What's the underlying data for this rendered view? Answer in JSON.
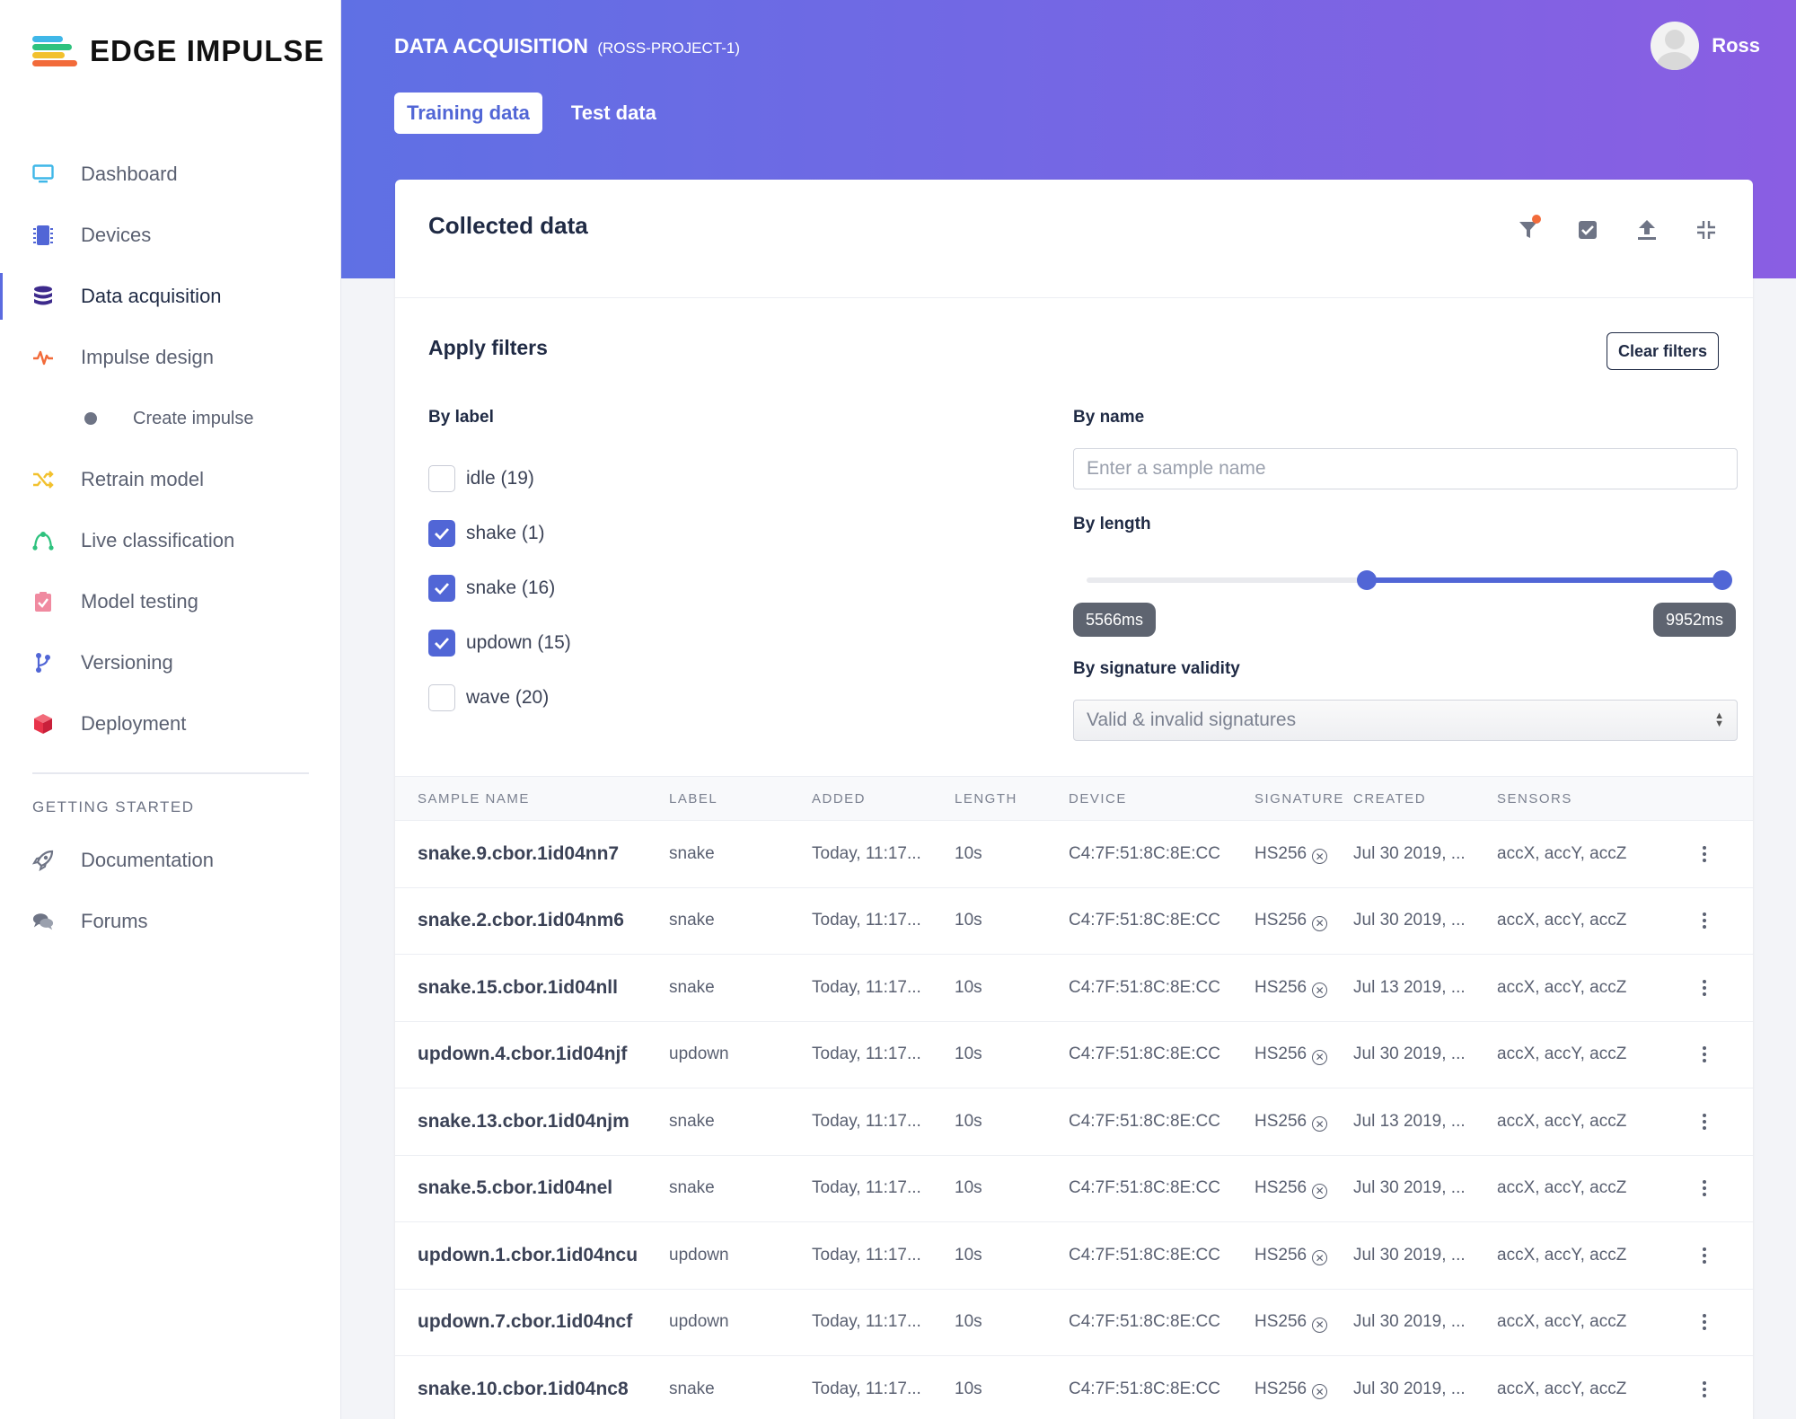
{
  "brand": {
    "name": "EDGE IMPULSE"
  },
  "sidebar": {
    "items": [
      {
        "label": "Dashboard",
        "icon": "monitor-icon",
        "color": "#3fb7e8"
      },
      {
        "label": "Devices",
        "icon": "chip-icon",
        "color": "#5166d6"
      },
      {
        "label": "Data acquisition",
        "icon": "database-icon",
        "color": "#3d2a8c",
        "active": true
      },
      {
        "label": "Impulse design",
        "icon": "pulse-icon",
        "color": "#f26b3a"
      },
      {
        "label": "Retrain model",
        "icon": "shuffle-icon",
        "color": "#f2c12e"
      },
      {
        "label": "Live classification",
        "icon": "bezier-icon",
        "color": "#2ec27e"
      },
      {
        "label": "Model testing",
        "icon": "clipboard-check-icon",
        "color": "#f08aa0"
      },
      {
        "label": "Versioning",
        "icon": "branch-icon",
        "color": "#5166d6"
      },
      {
        "label": "Deployment",
        "icon": "cube-icon",
        "color": "#e8334a"
      }
    ],
    "sub_item": {
      "label": "Create impulse"
    },
    "section_title": "GETTING STARTED",
    "help_items": [
      {
        "label": "Documentation",
        "icon": "rocket-icon"
      },
      {
        "label": "Forums",
        "icon": "chat-bubbles-icon"
      }
    ]
  },
  "header": {
    "title": "DATA ACQUISITION",
    "project": "(ROSS-PROJECT-1)",
    "user": "Ross",
    "tabs": [
      {
        "label": "Training data",
        "active": true
      },
      {
        "label": "Test data",
        "active": false
      }
    ],
    "gradient_start": "#5f70e4",
    "gradient_end": "#8a5ee3"
  },
  "card": {
    "title": "Collected data",
    "tools": [
      "filter-icon",
      "check-square-icon",
      "upload-icon",
      "collapse-icon"
    ]
  },
  "filters": {
    "title": "Apply filters",
    "clear_label": "Clear filters",
    "by_label_title": "By label",
    "labels": [
      {
        "text": "idle (19)",
        "checked": false
      },
      {
        "text": "shake (1)",
        "checked": true
      },
      {
        "text": "snake (16)",
        "checked": true
      },
      {
        "text": "updown (15)",
        "checked": true
      },
      {
        "text": "wave (20)",
        "checked": false
      }
    ],
    "by_name_title": "By name",
    "name_placeholder": "Enter a sample name",
    "by_length_title": "By length",
    "length_min_label": "5566ms",
    "length_max_label": "9952ms",
    "length_range_fraction": [
      0.44,
      1.0
    ],
    "by_signature_title": "By signature validity",
    "signature_selected": "Valid & invalid signatures"
  },
  "table": {
    "columns": [
      "SAMPLE NAME",
      "LABEL",
      "ADDED",
      "LENGTH",
      "DEVICE",
      "SIGNATURE",
      "CREATED",
      "SENSORS"
    ],
    "rows": [
      {
        "name": "snake.9.cbor.1id04nn7",
        "label": "snake",
        "added": "Today, 11:17...",
        "length": "10s",
        "device": "C4:7F:51:8C:8E:CC",
        "signature": "HS256",
        "created": "Jul 30 2019, ...",
        "sensors": "accX, accY, accZ"
      },
      {
        "name": "snake.2.cbor.1id04nm6",
        "label": "snake",
        "added": "Today, 11:17...",
        "length": "10s",
        "device": "C4:7F:51:8C:8E:CC",
        "signature": "HS256",
        "created": "Jul 30 2019, ...",
        "sensors": "accX, accY, accZ"
      },
      {
        "name": "snake.15.cbor.1id04nll",
        "label": "snake",
        "added": "Today, 11:17...",
        "length": "10s",
        "device": "C4:7F:51:8C:8E:CC",
        "signature": "HS256",
        "created": "Jul 13 2019, ...",
        "sensors": "accX, accY, accZ"
      },
      {
        "name": "updown.4.cbor.1id04njf",
        "label": "updown",
        "added": "Today, 11:17...",
        "length": "10s",
        "device": "C4:7F:51:8C:8E:CC",
        "signature": "HS256",
        "created": "Jul 30 2019, ...",
        "sensors": "accX, accY, accZ"
      },
      {
        "name": "snake.13.cbor.1id04njm",
        "label": "snake",
        "added": "Today, 11:17...",
        "length": "10s",
        "device": "C4:7F:51:8C:8E:CC",
        "signature": "HS256",
        "created": "Jul 13 2019, ...",
        "sensors": "accX, accY, accZ"
      },
      {
        "name": "snake.5.cbor.1id04nel",
        "label": "snake",
        "added": "Today, 11:17...",
        "length": "10s",
        "device": "C4:7F:51:8C:8E:CC",
        "signature": "HS256",
        "created": "Jul 30 2019, ...",
        "sensors": "accX, accY, accZ"
      },
      {
        "name": "updown.1.cbor.1id04ncu",
        "label": "updown",
        "added": "Today, 11:17...",
        "length": "10s",
        "device": "C4:7F:51:8C:8E:CC",
        "signature": "HS256",
        "created": "Jul 30 2019, ...",
        "sensors": "accX, accY, accZ"
      },
      {
        "name": "updown.7.cbor.1id04ncf",
        "label": "updown",
        "added": "Today, 11:17...",
        "length": "10s",
        "device": "C4:7F:51:8C:8E:CC",
        "signature": "HS256",
        "created": "Jul 30 2019, ...",
        "sensors": "accX, accY, accZ"
      },
      {
        "name": "snake.10.cbor.1id04nc8",
        "label": "snake",
        "added": "Today, 11:17...",
        "length": "10s",
        "device": "C4:7F:51:8C:8E:CC",
        "signature": "HS256",
        "created": "Jul 30 2019, ...",
        "sensors": "accX, accY, accZ"
      }
    ]
  },
  "colors": {
    "accent": "#5166d6",
    "badge": "#f26b3a"
  }
}
